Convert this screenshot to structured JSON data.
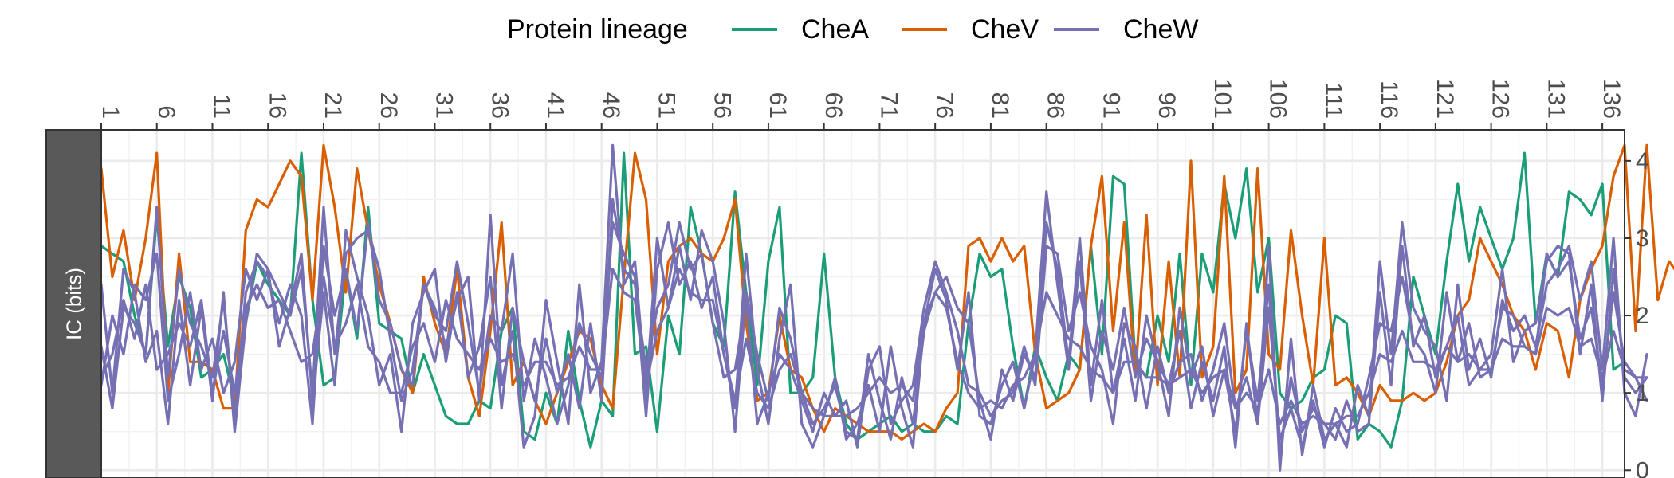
{
  "chart_data": {
    "type": "line",
    "legend": {
      "title": "Protein lineage",
      "position": "top",
      "entries": [
        {
          "name": "CheA",
          "color": "#1b9e77"
        },
        {
          "name": "CheV",
          "color": "#d95f02"
        },
        {
          "name": "CheW",
          "color": "#7570b3"
        }
      ]
    },
    "ylabel": "IC (bits)",
    "xlim": [
      1,
      138
    ],
    "ylim": [
      -0.1,
      4.4
    ],
    "x_axis_position": "top",
    "y_axis_position": "right",
    "x_ticks": [
      1,
      6,
      11,
      16,
      21,
      26,
      31,
      36,
      41,
      46,
      51,
      56,
      61,
      66,
      71,
      76,
      81,
      86,
      91,
      96,
      101,
      106,
      111,
      116,
      121,
      126,
      131,
      136
    ],
    "x_tick_labels": [
      "1",
      "6",
      "11",
      "16",
      "21",
      "26",
      "31",
      "36",
      "41",
      "46",
      "51",
      "56",
      "61",
      "66",
      "71",
      "76",
      "81",
      "86",
      "91",
      "96",
      "101",
      "106",
      "111",
      "116",
      "121",
      "126",
      "131",
      "136"
    ],
    "y_ticks": [
      0,
      1,
      2,
      3,
      4
    ],
    "y_tick_labels": [
      "0",
      "1",
      "2",
      "3",
      "4"
    ],
    "grid": true,
    "series": [
      {
        "lineage": "CheA",
        "color": "#1b9e77",
        "values": [
          2.9,
          2.8,
          2.7,
          2.0,
          1.5,
          3.3,
          1.6,
          2.5,
          2.1,
          1.2,
          1.3,
          1.5,
          0.9,
          1.9,
          2.7,
          2.4,
          2.2,
          2.0,
          4.1,
          2.2,
          1.1,
          1.2,
          2.6,
          1.7,
          3.4,
          1.9,
          1.8,
          1.7,
          1.0,
          1.5,
          1.1,
          0.7,
          0.6,
          0.6,
          0.9,
          0.8,
          1.8,
          2.1,
          0.5,
          0.4,
          1.0,
          0.6,
          1.8,
          0.9,
          0.3,
          0.9,
          0.7,
          4.1,
          1.5,
          1.6,
          0.5,
          2.0,
          1.5,
          3.4,
          2.8,
          1.9,
          1.6,
          3.6,
          2.3,
          1.1,
          2.7,
          3.4,
          1.0,
          1.0,
          1.2,
          2.8,
          1.2,
          0.6,
          0.4,
          0.5,
          0.6,
          0.7,
          0.5,
          0.6,
          0.5,
          0.5,
          0.7,
          0.6,
          1.9,
          2.8,
          2.5,
          2.6,
          1.6,
          0.8,
          1.6,
          1.2,
          0.9,
          1.5,
          1.3,
          2.9,
          1.5,
          3.8,
          3.7,
          1.4,
          1.2,
          2.0,
          1.4,
          2.8,
          1.1,
          2.8,
          2.3,
          3.7,
          3.0,
          3.9,
          2.3,
          3.0,
          1.0,
          0.8,
          0.9,
          1.2,
          1.3,
          2.0,
          1.9,
          0.4,
          0.6,
          0.5,
          0.3,
          0.9,
          2.5,
          2.0,
          1.5,
          2.7,
          3.7,
          2.7,
          3.4,
          3.0,
          2.6,
          3.0,
          4.1,
          1.9,
          2.8,
          2.5,
          3.6,
          3.5,
          3.3,
          3.7,
          1.3,
          1.4
        ]
      },
      {
        "lineage": "CheV",
        "color": "#d95f02",
        "values": [
          3.9,
          2.5,
          3.1,
          2.2,
          3.0,
          4.1,
          1.0,
          2.8,
          1.4,
          1.4,
          1.3,
          0.8,
          0.8,
          3.1,
          3.5,
          3.4,
          3.7,
          4.0,
          3.8,
          2.2,
          4.2,
          3.4,
          2.3,
          3.9,
          3.1,
          2.4,
          1.9,
          1.3,
          1.0,
          2.5,
          1.9,
          1.5,
          2.6,
          1.2,
          0.7,
          1.8,
          3.2,
          1.1,
          1.4,
          0.9,
          0.6,
          1.0,
          1.4,
          1.8,
          1.7,
          1.1,
          0.8,
          2.5,
          4.1,
          3.5,
          1.5,
          2.7,
          2.9,
          3.0,
          2.8,
          2.7,
          3.0,
          3.5,
          1.9,
          0.9,
          1.0,
          2.0,
          1.3,
          1.2,
          0.8,
          0.5,
          0.8,
          0.7,
          0.6,
          0.5,
          0.5,
          0.5,
          0.4,
          0.5,
          0.6,
          0.5,
          0.8,
          1.0,
          2.9,
          3.0,
          2.7,
          3.0,
          2.7,
          2.9,
          1.5,
          0.8,
          0.9,
          1.0,
          1.3,
          2.9,
          3.8,
          1.8,
          3.2,
          1.2,
          3.3,
          1.1,
          2.7,
          1.2,
          4.0,
          1.2,
          1.6,
          3.8,
          1.0,
          1.3,
          3.9,
          1.5,
          1.3,
          3.1,
          2.0,
          1.1,
          3.0,
          1.1,
          1.2,
          1.0,
          0.7,
          1.1,
          0.9,
          0.9,
          1.0,
          0.9,
          1.0,
          1.4,
          2.0,
          2.2,
          3.0,
          2.7,
          2.4,
          2.0,
          1.8,
          1.3,
          1.9,
          1.8,
          1.2,
          2.2,
          2.6,
          2.9,
          3.8,
          4.2,
          1.8,
          4.2,
          2.2,
          2.7,
          2.5,
          1.4
        ]
      },
      {
        "lineage": "CheW",
        "color": "#7570b3",
        "values": [
          2.4,
          1.0,
          2.6,
          2.3,
          1.4,
          1.8,
          0.6,
          2.2,
          1.1,
          2.1,
          0.9,
          2.3,
          0.5,
          1.9,
          2.8,
          2.6,
          2.3,
          2.0,
          2.6,
          1.0,
          3.4,
          1.5,
          2.8,
          3.0,
          3.1,
          2.6,
          1.7,
          0.9,
          1.3,
          2.4,
          2.1,
          1.6,
          2.2,
          2.5,
          0.9,
          3.3,
          1.1,
          1.8,
          0.3,
          0.7,
          2.2,
          1.4,
          0.6,
          2.4,
          1.0,
          1.4,
          4.2,
          2.4,
          2.7,
          1.0,
          3.0,
          2.1,
          2.9,
          2.2,
          3.1,
          2.7,
          1.9,
          0.5,
          2.3,
          1.5,
          0.9,
          2.1,
          1.7,
          1.0,
          0.6,
          0.8,
          1.1,
          0.5,
          0.4,
          1.5,
          0.9,
          0.4,
          1.2,
          0.6,
          1.8,
          2.3,
          2.5,
          2.1,
          1.9,
          0.9,
          0.4,
          1.3,
          0.9,
          1.5,
          1.2,
          3.2,
          2.6,
          1.4,
          3.0,
          1.1,
          2.2,
          1.0,
          1.7,
          0.9,
          2.0,
          1.4,
          1.1,
          1.8,
          0.8,
          1.4,
          0.9,
          1.6,
          0.3,
          1.9,
          0.6,
          2.9,
          0.0,
          1.7,
          0.2,
          1.1,
          0.4,
          0.6,
          0.3,
          1.1,
          0.7,
          2.7,
          1.5,
          3.2,
          2.1,
          1.8,
          1.6,
          0.9,
          2.4,
          1.3,
          1.7,
          1.2,
          2.2,
          1.8,
          2.0,
          1.6,
          2.4,
          2.6,
          2.9,
          2.2,
          2.7,
          1.3,
          3.0,
          1.0,
          0.7,
          1.5
        ]
      },
      {
        "lineage": "CheW",
        "color": "#7570b3",
        "values": [
          1.6,
          0.8,
          2.1,
          1.9,
          1.5,
          3.4,
          1.2,
          2.6,
          1.9,
          1.6,
          1.2,
          2.2,
          0.7,
          2.3,
          2.7,
          2.5,
          1.9,
          2.4,
          2.0,
          0.6,
          2.9,
          2.0,
          2.6,
          1.8,
          3.2,
          2.2,
          1.9,
          1.3,
          1.1,
          2.4,
          2.0,
          1.8,
          2.7,
          1.9,
          1.0,
          2.0,
          1.8,
          2.8,
          0.9,
          1.7,
          1.2,
          0.6,
          1.1,
          1.9,
          1.5,
          1.2,
          3.2,
          2.8,
          2.5,
          0.7,
          2.6,
          3.2,
          2.4,
          2.7,
          2.1,
          2.5,
          1.5,
          0.8,
          2.8,
          1.3,
          0.6,
          1.7,
          2.4,
          0.6,
          0.3,
          0.7,
          1.2,
          0.4,
          0.6,
          1.1,
          0.5,
          1.6,
          0.8,
          0.3,
          1.9,
          2.6,
          2.2,
          1.3,
          2.3,
          0.7,
          0.6,
          1.1,
          1.4,
          0.8,
          1.5,
          3.6,
          2.4,
          1.3,
          2.7,
          0.9,
          1.8,
          1.3,
          2.1,
          1.2,
          1.7,
          1.4,
          0.7,
          2.1,
          1.2,
          1.6,
          0.7,
          1.3,
          0.5,
          1.8,
          0.9,
          2.4,
          0.2,
          1.2,
          0.5,
          0.8,
          0.6,
          0.4,
          0.9,
          0.5,
          0.6,
          2.3,
          1.1,
          2.9,
          1.6,
          2.0,
          1.2,
          1.6,
          2.0,
          1.1,
          1.3,
          1.5,
          2.6,
          1.4,
          1.8,
          1.9,
          2.7,
          2.9,
          2.8,
          1.5,
          2.4,
          0.9,
          2.6,
          1.2,
          1.0,
          1.2
        ]
      },
      {
        "lineage": "CheW",
        "color": "#7570b3",
        "values": [
          1.1,
          2.0,
          1.5,
          2.4,
          2.2,
          2.8,
          0.9,
          1.5,
          2.3,
          1.3,
          1.7,
          1.0,
          1.4,
          2.6,
          2.2,
          2.6,
          1.6,
          2.1,
          2.8,
          0.9,
          2.3,
          1.1,
          3.1,
          2.5,
          2.0,
          1.1,
          1.5,
          0.5,
          1.9,
          2.3,
          2.6,
          1.4,
          2.3,
          1.2,
          1.6,
          2.5,
          0.8,
          2.1,
          1.4,
          0.9,
          1.7,
          1.0,
          1.5,
          0.8,
          1.9,
          0.9,
          3.5,
          2.6,
          2.4,
          1.3,
          2.1,
          2.4,
          3.2,
          2.6,
          2.8,
          1.9,
          1.2,
          1.3,
          2.2,
          0.6,
          1.0,
          1.5,
          1.3,
          0.9,
          0.5,
          1.0,
          0.7,
          0.9,
          0.3,
          1.3,
          1.6,
          0.6,
          0.9,
          1.1,
          2.1,
          2.7,
          2.3,
          1.8,
          1.1,
          1.0,
          0.7,
          0.9,
          1.0,
          1.6,
          1.1,
          2.9,
          2.8,
          1.8,
          2.3,
          1.6,
          1.3,
          0.6,
          1.9,
          1.6,
          0.8,
          1.6,
          1.0,
          1.4,
          1.5,
          0.9,
          1.3,
          1.9,
          0.8,
          1.2,
          0.6,
          2.1,
          0.4,
          0.8,
          0.3,
          0.9,
          0.3,
          0.8,
          0.5,
          0.6,
          1.2,
          1.9,
          1.8,
          2.5,
          1.7,
          1.5,
          1.0,
          2.3,
          1.4,
          1.9,
          1.2,
          1.3,
          2.1,
          2.0,
          1.6,
          1.5,
          2.8,
          2.5,
          2.7,
          1.7,
          2.1,
          1.1,
          2.3,
          1.4,
          1.2,
          0.9
        ]
      },
      {
        "lineage": "CheW",
        "color": "#7570b3",
        "values": [
          1.2,
          1.5,
          2.2,
          1.7,
          2.4,
          1.3,
          1.5,
          1.9,
          1.6,
          2.2,
          1.0,
          1.8,
          1.0,
          2.1,
          2.4,
          2.1,
          2.2,
          1.8,
          1.4,
          1.5,
          2.5,
          1.6,
          1.9,
          2.4,
          1.6,
          1.4,
          1.0,
          1.0,
          1.6,
          1.9,
          1.4,
          2.2,
          1.7,
          1.5,
          1.3,
          1.7,
          1.4,
          1.5,
          1.1,
          1.4,
          1.4,
          1.1,
          1.2,
          1.6,
          1.3,
          1.3,
          2.6,
          2.3,
          2.2,
          1.1,
          1.8,
          2.1,
          2.6,
          2.3,
          2.2,
          2.2,
          1.5,
          0.9,
          1.7,
          1.0,
          0.8,
          1.3,
          1.5,
          1.0,
          0.8,
          0.7,
          0.7,
          0.7,
          0.8,
          1.0,
          1.2,
          1.0,
          1.1,
          0.9,
          1.9,
          2.3,
          2.1,
          1.4,
          1.0,
          0.8,
          0.9,
          0.8,
          1.1,
          1.2,
          1.5,
          2.3,
          2.0,
          1.7,
          1.6,
          1.3,
          1.2,
          1.0,
          1.4,
          1.4,
          1.2,
          1.2,
          1.1,
          1.2,
          1.3,
          1.0,
          1.2,
          1.3,
          0.8,
          1.0,
          0.8,
          1.3,
          0.6,
          0.9,
          0.6,
          0.7,
          0.6,
          0.6,
          0.7,
          0.7,
          1.0,
          1.5,
          1.4,
          1.8,
          1.4,
          1.4,
          1.3,
          1.6,
          1.4,
          1.5,
          1.3,
          1.3,
          1.7,
          1.6,
          1.6,
          1.5,
          2.1,
          2.0,
          2.1,
          1.6,
          1.7,
          1.2,
          1.8,
          1.3,
          1.2,
          1.2
        ]
      }
    ]
  }
}
